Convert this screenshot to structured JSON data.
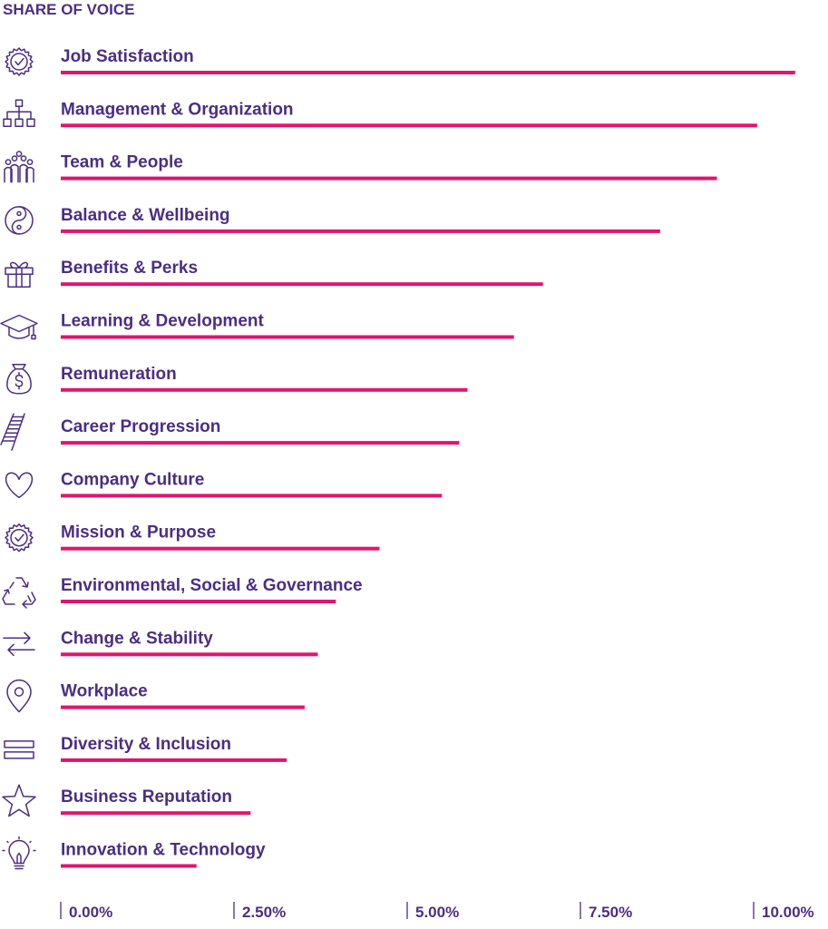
{
  "chart_data": {
    "type": "bar",
    "orientation": "horizontal",
    "title": "SHARE OF VOICE",
    "xlim": [
      0,
      10
    ],
    "x_ticks": [
      {
        "value": 0,
        "label": "0.00%"
      },
      {
        "value": 2.5,
        "label": "2.50%"
      },
      {
        "value": 5,
        "label": "5.00%"
      },
      {
        "value": 7.5,
        "label": "7.50%"
      },
      {
        "value": 10,
        "label": "10.00%"
      }
    ],
    "grid": false,
    "legend": "none",
    "bar_color": "#e0156f",
    "text_color": "#4b2e83",
    "categories": [
      "Job Satisfaction",
      "Management & Organization",
      "Team & People",
      "Balance & Wellbeing",
      "Benefits & Perks",
      "Learning & Development",
      "Remuneration",
      "Career Progression",
      "Company Culture",
      "Mission & Purpose",
      "Environmental, Social & Governance",
      "Change & Stability",
      "Workplace",
      "Diversity & Inclusion",
      "Business Reputation",
      "Innovation & Technology"
    ],
    "values": [
      10.6,
      10.05,
      9.47,
      8.65,
      6.96,
      6.54,
      5.87,
      5.75,
      5.5,
      4.6,
      3.97,
      3.71,
      3.52,
      3.26,
      2.74,
      1.96
    ],
    "icons": [
      "badge-check-icon",
      "org-chart-icon",
      "people-group-icon",
      "yin-yang-icon",
      "gift-icon",
      "graduation-cap-icon",
      "money-bag-icon",
      "ladder-icon",
      "heart-icon",
      "badge-check-icon",
      "recycle-icon",
      "swap-arrows-icon",
      "location-pin-icon",
      "equal-bars-icon",
      "star-icon",
      "lightbulb-icon"
    ]
  }
}
